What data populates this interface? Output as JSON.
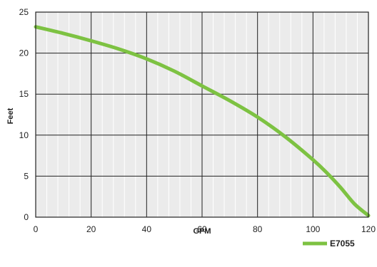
{
  "chart_data": {
    "type": "line",
    "title": "",
    "xlabel": "GPM",
    "ylabel": "Feet",
    "xlim": [
      0,
      120
    ],
    "ylim": [
      0,
      25
    ],
    "x_ticks": [
      0,
      20,
      40,
      60,
      80,
      100,
      120
    ],
    "y_ticks": [
      0,
      5,
      10,
      15,
      20,
      25
    ],
    "x_minor_step": 4,
    "grid": true,
    "legend_position": "bottom-right",
    "series": [
      {
        "name": "E7055",
        "color": "#7dc242",
        "x": [
          0,
          10,
          20,
          30,
          40,
          50,
          60,
          70,
          80,
          90,
          100,
          105,
          110,
          115,
          120
        ],
        "y": [
          23.2,
          22.4,
          21.5,
          20.5,
          19.3,
          17.8,
          16.0,
          14.2,
          12.2,
          9.8,
          7.0,
          5.4,
          3.6,
          1.6,
          0.2
        ]
      }
    ]
  }
}
